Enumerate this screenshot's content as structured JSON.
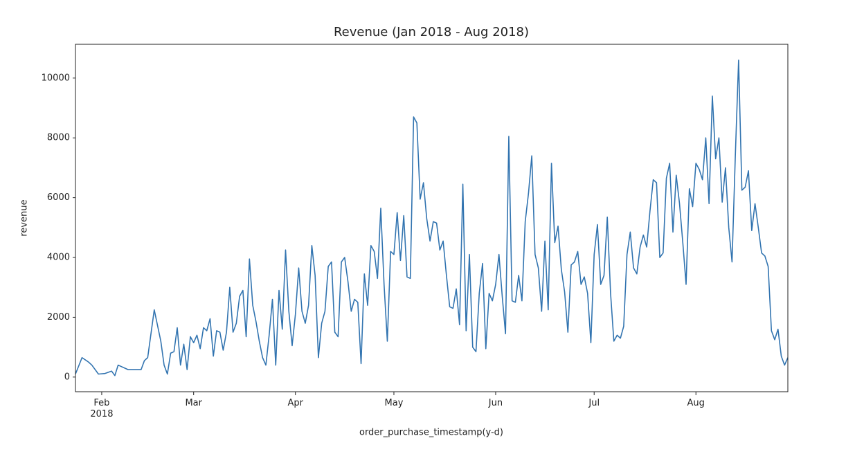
{
  "chart_data": {
    "type": "line",
    "title": "Revenue (Jan 2018 - Aug 2018)",
    "xlabel": "order_purchase_timestamp(y-d)",
    "ylabel": "revenue",
    "color": "#3274b0",
    "x": [
      "2018-01-24",
      "2018-01-26",
      "2018-01-28",
      "2018-01-29",
      "2018-01-31",
      "2018-02-02",
      "2018-02-04",
      "2018-02-05",
      "2018-02-06",
      "2018-02-09",
      "2018-02-13",
      "2018-02-14",
      "2018-02-15",
      "2018-02-17",
      "2018-02-19",
      "2018-02-20",
      "2018-02-21",
      "2018-02-22",
      "2018-02-23",
      "2018-02-24",
      "2018-02-25",
      "2018-02-26",
      "2018-02-27",
      "2018-02-28",
      "2018-03-01",
      "2018-03-02",
      "2018-03-03",
      "2018-03-04",
      "2018-03-05",
      "2018-03-06",
      "2018-03-07",
      "2018-03-08",
      "2018-03-09",
      "2018-03-10",
      "2018-03-11",
      "2018-03-12",
      "2018-03-13",
      "2018-03-14",
      "2018-03-15",
      "2018-03-16",
      "2018-03-17",
      "2018-03-18",
      "2018-03-19",
      "2018-03-20",
      "2018-03-21",
      "2018-03-22",
      "2018-03-23",
      "2018-03-24",
      "2018-03-25",
      "2018-03-26",
      "2018-03-27",
      "2018-03-28",
      "2018-03-29",
      "2018-03-30",
      "2018-03-31",
      "2018-04-01",
      "2018-04-02",
      "2018-04-03",
      "2018-04-04",
      "2018-04-05",
      "2018-04-06",
      "2018-04-07",
      "2018-04-08",
      "2018-04-09",
      "2018-04-10",
      "2018-04-11",
      "2018-04-12",
      "2018-04-13",
      "2018-04-14",
      "2018-04-15",
      "2018-04-16",
      "2018-04-17",
      "2018-04-18",
      "2018-04-19",
      "2018-04-20",
      "2018-04-21",
      "2018-04-22",
      "2018-04-23",
      "2018-04-24",
      "2018-04-25",
      "2018-04-26",
      "2018-04-27",
      "2018-04-28",
      "2018-04-29",
      "2018-04-30",
      "2018-05-01",
      "2018-05-02",
      "2018-05-03",
      "2018-05-04",
      "2018-05-05",
      "2018-05-06",
      "2018-05-07",
      "2018-05-08",
      "2018-05-09",
      "2018-05-10",
      "2018-05-11",
      "2018-05-12",
      "2018-05-13",
      "2018-05-14",
      "2018-05-15",
      "2018-05-16",
      "2018-05-17",
      "2018-05-18",
      "2018-05-19",
      "2018-05-20",
      "2018-05-21",
      "2018-05-22",
      "2018-05-23",
      "2018-05-24",
      "2018-05-25",
      "2018-05-26",
      "2018-05-27",
      "2018-05-28",
      "2018-05-29",
      "2018-05-30",
      "2018-05-31",
      "2018-06-01",
      "2018-06-02",
      "2018-06-03",
      "2018-06-04",
      "2018-06-05",
      "2018-06-06",
      "2018-06-07",
      "2018-06-08",
      "2018-06-09",
      "2018-06-10",
      "2018-06-11",
      "2018-06-12",
      "2018-06-13",
      "2018-06-14",
      "2018-06-15",
      "2018-06-16",
      "2018-06-17",
      "2018-06-18",
      "2018-06-19",
      "2018-06-20",
      "2018-06-21",
      "2018-06-22",
      "2018-06-23",
      "2018-06-24",
      "2018-06-25",
      "2018-06-26",
      "2018-06-27",
      "2018-06-28",
      "2018-06-29",
      "2018-06-30",
      "2018-07-01",
      "2018-07-02",
      "2018-07-03",
      "2018-07-04",
      "2018-07-05",
      "2018-07-06",
      "2018-07-07",
      "2018-07-08",
      "2018-07-09",
      "2018-07-10",
      "2018-07-11",
      "2018-07-12",
      "2018-07-13",
      "2018-07-14",
      "2018-07-15",
      "2018-07-16",
      "2018-07-17",
      "2018-07-18",
      "2018-07-19",
      "2018-07-20",
      "2018-07-21",
      "2018-07-22",
      "2018-07-23",
      "2018-07-24",
      "2018-07-25",
      "2018-07-26",
      "2018-07-27",
      "2018-07-28",
      "2018-07-29",
      "2018-07-30",
      "2018-07-31",
      "2018-08-01",
      "2018-08-02",
      "2018-08-03",
      "2018-08-04",
      "2018-08-05",
      "2018-08-06",
      "2018-08-07",
      "2018-08-08",
      "2018-08-09",
      "2018-08-10",
      "2018-08-11",
      "2018-08-12",
      "2018-08-13",
      "2018-08-14",
      "2018-08-15",
      "2018-08-16",
      "2018-08-17",
      "2018-08-18",
      "2018-08-19",
      "2018-08-20",
      "2018-08-21",
      "2018-08-22",
      "2018-08-23",
      "2018-08-24",
      "2018-08-25",
      "2018-08-26",
      "2018-08-27",
      "2018-08-28",
      "2018-08-29"
    ],
    "values": [
      100,
      650,
      500,
      400,
      100,
      120,
      200,
      50,
      400,
      250,
      250,
      550,
      650,
      2250,
      1200,
      400,
      100,
      800,
      850,
      1650,
      400,
      1100,
      250,
      1350,
      1150,
      1400,
      950,
      1650,
      1550,
      1950,
      700,
      1550,
      1500,
      900,
      1500,
      3000,
      1500,
      1800,
      2700,
      2900,
      1350,
      3950,
      2400,
      1850,
      1200,
      650,
      400,
      1400,
      2600,
      400,
      2900,
      1600,
      4250,
      2200,
      1050,
      2100,
      3650,
      2200,
      1800,
      2400,
      4400,
      3400,
      650,
      1800,
      2200,
      3700,
      3850,
      1500,
      1350,
      3850,
      4000,
      3200,
      2200,
      2600,
      2500,
      450,
      3450,
      2400,
      4400,
      4200,
      3300,
      5650,
      3100,
      1200,
      4200,
      4100,
      5500,
      3900,
      5400,
      3350,
      3300,
      8700,
      8500,
      5950,
      6500,
      5300,
      4550,
      5200,
      5150,
      4250,
      4550,
      3400,
      2350,
      2300,
      2950,
      1750,
      6450,
      1550,
      4100,
      1000,
      850,
      2800,
      3800,
      950,
      2800,
      2550,
      3100,
      4100,
      2700,
      1450,
      8050,
      2550,
      2500,
      3400,
      2550,
      5200,
      6150,
      7400,
      4100,
      3650,
      2200,
      4550,
      2250,
      7150,
      4500,
      5050,
      3600,
      2850,
      1500,
      3750,
      3850,
      4200,
      3100,
      3350,
      2800,
      1150,
      4100,
      5100,
      3100,
      3400,
      5350,
      2800,
      1200,
      1400,
      1300,
      1700,
      4100,
      4850,
      3650,
      3450,
      4350,
      4750,
      4350,
      5550,
      6600,
      6500,
      4000,
      4150,
      6650,
      7150,
      4850,
      6750,
      5800,
      4500,
      3100,
      6300,
      5700,
      7150,
      6950,
      6600,
      8000,
      5800,
      9400,
      7300,
      8000,
      5850,
      7000,
      5000,
      3850,
      7400,
      10600,
      6250,
      6350,
      6900,
      4900,
      5800,
      5000,
      4150,
      4050,
      3700,
      1550,
      1250,
      1600,
      700,
      400,
      650
    ],
    "xlim": [
      "2018-01-24",
      "2018-08-29"
    ],
    "xticks": [
      {
        "value": "2018-02-01",
        "label": "Feb\n2018"
      },
      {
        "value": "2018-03-01",
        "label": "Mar"
      },
      {
        "value": "2018-04-01",
        "label": "Apr"
      },
      {
        "value": "2018-05-01",
        "label": "May"
      },
      {
        "value": "2018-06-01",
        "label": "Jun"
      },
      {
        "value": "2018-07-01",
        "label": "Jul"
      },
      {
        "value": "2018-08-01",
        "label": "Aug"
      }
    ],
    "ylim": [
      -490,
      11130
    ],
    "yticks": [
      0,
      2000,
      4000,
      6000,
      8000,
      10000
    ]
  }
}
